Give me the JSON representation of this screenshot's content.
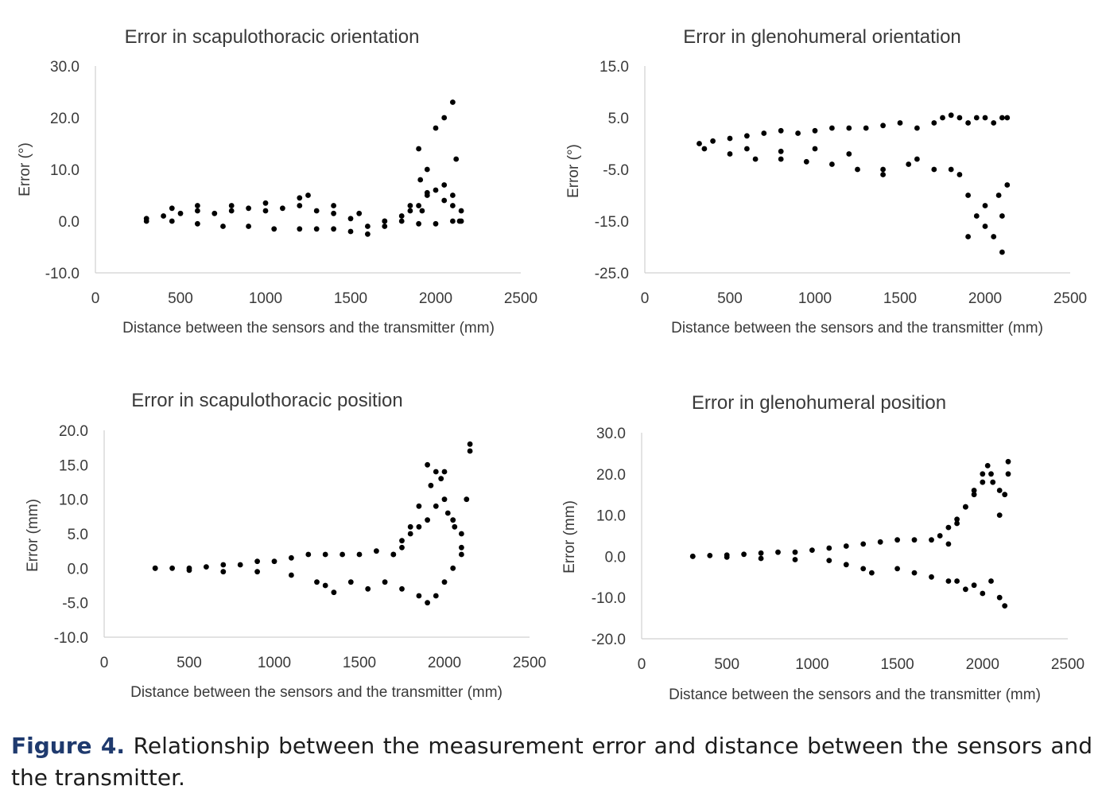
{
  "caption": {
    "label": "Figure 4.",
    "text": " Relationship between the measurement error and distance between the sensors and the transmitter."
  },
  "chart_data": [
    {
      "type": "scatter",
      "title": "Error in scapulothoracic orientation",
      "xlabel": "Distance between the sensors and the transmitter (mm)",
      "ylabel": "Error (°)",
      "xlim": [
        0,
        2500
      ],
      "ylim": [
        -10,
        30
      ],
      "xticks": [
        0,
        500,
        1000,
        1500,
        2000,
        2500
      ],
      "xtick_labels": [
        "0",
        "500",
        "1000",
        "1500",
        "2000",
        "2500"
      ],
      "yticks": [
        -10,
        0,
        10,
        20,
        30
      ],
      "ytick_labels": [
        "-10.0",
        "0.0",
        "10.0",
        "20.0",
        "30.0"
      ],
      "grid": false,
      "marker_color": "#000000",
      "series": [
        {
          "x": [
            300,
            400,
            500,
            600,
            700,
            800,
            900,
            1000,
            1100,
            1200,
            1300,
            1400,
            1500,
            1600,
            1700,
            1800,
            1850,
            1900,
            1950,
            2000,
            2050,
            2100,
            2150,
            300,
            450,
            600,
            750,
            900,
            1050,
            1200,
            1300,
            1400,
            1500,
            1600,
            1700,
            1800,
            1900,
            2000,
            2100,
            450,
            600,
            800,
            1000,
            1200,
            1250,
            1400,
            1550,
            1700,
            1850,
            1950,
            2050,
            2100,
            2150,
            1900,
            1910,
            1920,
            1950,
            2000,
            2050,
            2100,
            2120,
            2140
          ],
          "y": [
            0.5,
            1,
            1.5,
            2,
            1.5,
            2,
            2.5,
            2,
            2.5,
            3,
            2,
            1.5,
            0.5,
            -1,
            0,
            1,
            2,
            3,
            5,
            6,
            4,
            3,
            0,
            0,
            0,
            -0.5,
            -1,
            -1,
            -1.5,
            -1.5,
            -1.5,
            -1.5,
            -2,
            -2.5,
            -1,
            0,
            -0.5,
            -0.5,
            0,
            2.5,
            3,
            3,
            3.5,
            4.5,
            5,
            3,
            1.5,
            0,
            3,
            5.5,
            7,
            5,
            2,
            14,
            8,
            2,
            10,
            18,
            20,
            23,
            12,
            0
          ]
        }
      ]
    },
    {
      "type": "scatter",
      "title": "Error in glenohumeral orientation",
      "xlabel": "Distance between the sensors and the transmitter (mm)",
      "ylabel": "Error (°)",
      "xlim": [
        0,
        2500
      ],
      "ylim": [
        -25,
        15
      ],
      "xticks": [
        0,
        500,
        1000,
        1500,
        2000,
        2500
      ],
      "xtick_labels": [
        "0",
        "500",
        "1000",
        "1500",
        "2000",
        "2500"
      ],
      "yticks": [
        -25,
        -15,
        -5,
        5,
        15
      ],
      "ytick_labels": [
        "-25.0",
        "-15.0",
        "-5.0",
        "5.0",
        "15.0"
      ],
      "grid": false,
      "marker_color": "#000000",
      "series": [
        {
          "x": [
            320,
            400,
            500,
            600,
            700,
            800,
            900,
            1000,
            1100,
            1200,
            1300,
            1400,
            1500,
            1600,
            1700,
            1750,
            1800,
            1850,
            1900,
            1950,
            2000,
            2050,
            2100,
            2130,
            350,
            500,
            650,
            800,
            950,
            1100,
            1250,
            1400,
            1550,
            1700,
            1850,
            1900,
            1950,
            2000,
            2050,
            2100,
            600,
            800,
            1000,
            1200,
            1400,
            1600,
            1800,
            1900,
            2000,
            2080,
            2100,
            2130
          ],
          "y": [
            0,
            0.5,
            1,
            1.5,
            2,
            2.5,
            2,
            2.5,
            3,
            3,
            3,
            3.5,
            4,
            3,
            4,
            5,
            5.5,
            5,
            4,
            5,
            5,
            4,
            5,
            5,
            -1,
            -2,
            -3,
            -3,
            -3.5,
            -4,
            -5,
            -5,
            -4,
            -5,
            -6,
            -10,
            -14,
            -12,
            -18,
            -21,
            -1,
            -1.5,
            -1,
            -2,
            -6,
            -3,
            -5,
            -18,
            -16,
            -10,
            -14,
            -8
          ]
        }
      ]
    },
    {
      "type": "scatter",
      "title": "Error in scapulothoracic position",
      "xlabel": "Distance between the sensors and the transmitter (mm)",
      "ylabel": "Error (mm)",
      "xlim": [
        0,
        2500
      ],
      "ylim": [
        -10,
        20
      ],
      "xticks": [
        0,
        500,
        1000,
        1500,
        2000,
        2500
      ],
      "xtick_labels": [
        "0",
        "500",
        "1000",
        "1500",
        "2000",
        "2500"
      ],
      "yticks": [
        -10,
        -5,
        0,
        5,
        10,
        15,
        20
      ],
      "ytick_labels": [
        "-10.0",
        "-5.0",
        "0.0",
        "5.0",
        "10.0",
        "15.0",
        "20.0"
      ],
      "grid": false,
      "marker_color": "#000000",
      "series": [
        {
          "x": [
            300,
            400,
            500,
            600,
            700,
            800,
            900,
            1000,
            1100,
            1200,
            1300,
            1400,
            1500,
            1600,
            1700,
            1750,
            1800,
            1850,
            1900,
            1950,
            2000,
            2050,
            2100,
            2150,
            300,
            500,
            700,
            900,
            1100,
            1250,
            1300,
            1350,
            1450,
            1550,
            1650,
            1750,
            1850,
            1900,
            1950,
            2000,
            2050,
            2100,
            1700,
            1750,
            1800,
            1850,
            1900,
            1920,
            1950,
            1980,
            2000,
            2020,
            2060,
            2100,
            2130,
            2150
          ],
          "y": [
            0,
            0,
            0,
            0.2,
            0.5,
            0.5,
            1,
            1,
            1.5,
            2,
            2,
            2,
            2,
            2.5,
            2,
            3,
            5,
            6,
            7,
            9,
            10,
            7,
            5,
            18,
            0,
            -0.3,
            -0.5,
            -0.5,
            -1,
            -2,
            -2.5,
            -3.5,
            -2,
            -3,
            -2,
            -3,
            -4,
            -5,
            -4,
            -2,
            0,
            2,
            2,
            4,
            6,
            9,
            15,
            12,
            14,
            13,
            14,
            8,
            6,
            3,
            10,
            17
          ]
        }
      ]
    },
    {
      "type": "scatter",
      "title": "Error in glenohumeral position",
      "xlabel": "Distance between the sensors and the transmitter (mm)",
      "ylabel": "Error (mm)",
      "xlim": [
        0,
        2500
      ],
      "ylim": [
        -20,
        30
      ],
      "xticks": [
        0,
        500,
        1000,
        1500,
        2000,
        2500
      ],
      "xtick_labels": [
        "0",
        "500",
        "1000",
        "1500",
        "2000",
        "2500"
      ],
      "yticks": [
        -20,
        -10,
        0,
        10,
        20,
        30
      ],
      "ytick_labels": [
        "-20.0",
        "-10.0",
        "0.0",
        "10.0",
        "20.0",
        "30.0"
      ],
      "grid": false,
      "marker_color": "#000000",
      "series": [
        {
          "x": [
            300,
            400,
            500,
            600,
            700,
            800,
            900,
            1000,
            1100,
            1200,
            1300,
            1400,
            1500,
            1600,
            1700,
            1750,
            1800,
            1850,
            1900,
            1950,
            2000,
            2050,
            2100,
            2150,
            300,
            500,
            700,
            900,
            1100,
            1200,
            1300,
            1350,
            1500,
            1600,
            1700,
            1800,
            1850,
            1900,
            1950,
            2000,
            2050,
            2100,
            2130,
            1800,
            1850,
            1900,
            1950,
            2000,
            2030,
            2060,
            2100,
            2130,
            2150
          ],
          "y": [
            0,
            0.2,
            0.3,
            0.5,
            0.8,
            1,
            1,
            1.5,
            2,
            2.5,
            3,
            3.5,
            4,
            4,
            4,
            5,
            7,
            9,
            12,
            15,
            18,
            20,
            16,
            23,
            0,
            -0.2,
            -0.5,
            -0.8,
            -1,
            -2,
            -3,
            -4,
            -3,
            -4,
            -5,
            -6,
            -6,
            -8,
            -7,
            -9,
            -6,
            -10,
            -12,
            3,
            8,
            12,
            16,
            20,
            22,
            18,
            10,
            15,
            20
          ]
        }
      ]
    }
  ]
}
